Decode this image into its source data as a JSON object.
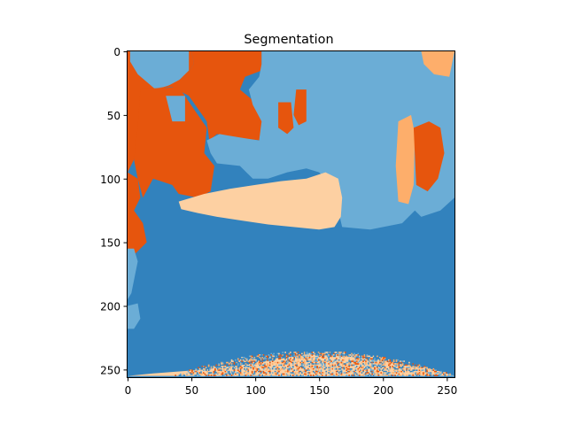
{
  "chart_data": {
    "type": "heatmap",
    "title": "Segmentation",
    "xlabel": "",
    "ylabel": "",
    "xlim": [
      0,
      255
    ],
    "ylim": [
      255,
      0
    ],
    "x_ticks": [
      0,
      50,
      100,
      150,
      200,
      250
    ],
    "y_ticks": [
      0,
      50,
      100,
      150,
      200,
      250
    ],
    "image_size": [
      256,
      256
    ],
    "classes": [
      {
        "name": "",
        "color": "#3282bd"
      },
      {
        "name": "",
        "color": "#6badd6"
      },
      {
        "name": "",
        "color": "#e6550d"
      },
      {
        "name": "",
        "color": "#fdae6b"
      },
      {
        "name": "",
        "color": "#fdd0a2"
      }
    ],
    "regions": [
      {
        "class": 2,
        "polygon": [
          [
            0,
            0
          ],
          [
            50,
            0
          ],
          [
            52,
            10
          ],
          [
            45,
            20
          ],
          [
            30,
            28
          ],
          [
            20,
            40
          ],
          [
            10,
            60
          ],
          [
            5,
            85
          ],
          [
            0,
            95
          ]
        ]
      },
      {
        "class": 2,
        "polygon": [
          [
            0,
            95
          ],
          [
            8,
            100
          ],
          [
            10,
            115
          ],
          [
            5,
            125
          ],
          [
            12,
            135
          ],
          [
            15,
            150
          ],
          [
            5,
            160
          ],
          [
            0,
            160
          ]
        ]
      },
      {
        "class": 1,
        "polygon": [
          [
            2,
            0
          ],
          [
            48,
            0
          ],
          [
            48,
            15
          ],
          [
            38,
            25
          ],
          [
            22,
            30
          ],
          [
            8,
            18
          ],
          [
            2,
            8
          ]
        ]
      },
      {
        "class": 2,
        "polygon": [
          [
            10,
            30
          ],
          [
            35,
            28
          ],
          [
            48,
            35
          ],
          [
            55,
            45
          ],
          [
            62,
            55
          ],
          [
            64,
            70
          ],
          [
            70,
            65
          ],
          [
            85,
            68
          ],
          [
            105,
            70
          ],
          [
            108,
            55
          ],
          [
            100,
            40
          ],
          [
            88,
            30
          ],
          [
            92,
            20
          ],
          [
            105,
            15
          ],
          [
            105,
            0
          ],
          [
            50,
            0
          ],
          [
            52,
            10
          ],
          [
            45,
            20
          ],
          [
            30,
            28
          ]
        ]
      },
      {
        "class": 2,
        "polygon": [
          [
            10,
            30
          ],
          [
            40,
            28
          ],
          [
            62,
            60
          ],
          [
            60,
            80
          ],
          [
            68,
            90
          ],
          [
            65,
            110
          ],
          [
            55,
            115
          ],
          [
            40,
            112
          ],
          [
            35,
            105
          ],
          [
            20,
            100
          ],
          [
            12,
            115
          ],
          [
            8,
            100
          ],
          [
            5,
            85
          ],
          [
            8,
            60
          ]
        ]
      },
      {
        "class": 1,
        "polygon": [
          [
            30,
            35
          ],
          [
            45,
            35
          ],
          [
            45,
            55
          ],
          [
            35,
            55
          ]
        ]
      },
      {
        "class": 1,
        "polygon": [
          [
            148,
            0
          ],
          [
            256,
            0
          ],
          [
            256,
            115
          ],
          [
            245,
            125
          ],
          [
            230,
            130
          ],
          [
            225,
            125
          ],
          [
            215,
            135
          ],
          [
            190,
            140
          ],
          [
            168,
            138
          ],
          [
            165,
            125
          ],
          [
            160,
            105
          ],
          [
            150,
            95
          ],
          [
            140,
            92
          ],
          [
            125,
            95
          ],
          [
            110,
            100
          ],
          [
            98,
            100
          ],
          [
            88,
            90
          ],
          [
            70,
            88
          ],
          [
            65,
            80
          ],
          [
            62,
            70
          ],
          [
            72,
            65
          ],
          [
            90,
            68
          ],
          [
            103,
            70
          ],
          [
            105,
            55
          ],
          [
            98,
            42
          ],
          [
            95,
            30
          ],
          [
            103,
            20
          ],
          [
            105,
            10
          ],
          [
            105,
            0
          ]
        ]
      },
      {
        "class": 3,
        "polygon": [
          [
            230,
            0
          ],
          [
            256,
            0
          ],
          [
            252,
            20
          ],
          [
            240,
            18
          ],
          [
            232,
            10
          ]
        ]
      },
      {
        "class": 3,
        "polygon": [
          [
            212,
            55
          ],
          [
            222,
            50
          ],
          [
            225,
            65
          ],
          [
            224,
            105
          ],
          [
            220,
            120
          ],
          [
            212,
            118
          ],
          [
            210,
            90
          ]
        ]
      },
      {
        "class": 2,
        "polygon": [
          [
            224,
            60
          ],
          [
            236,
            55
          ],
          [
            245,
            60
          ],
          [
            248,
            80
          ],
          [
            243,
            100
          ],
          [
            235,
            110
          ],
          [
            226,
            105
          ]
        ]
      },
      {
        "class": 2,
        "polygon": [
          [
            118,
            40
          ],
          [
            128,
            40
          ],
          [
            130,
            60
          ],
          [
            125,
            65
          ],
          [
            118,
            60
          ]
        ]
      },
      {
        "class": 2,
        "polygon": [
          [
            132,
            30
          ],
          [
            140,
            30
          ],
          [
            140,
            55
          ],
          [
            134,
            58
          ],
          [
            130,
            50
          ]
        ]
      },
      {
        "class": 4,
        "polygon": [
          [
            40,
            118
          ],
          [
            60,
            112
          ],
          [
            80,
            108
          ],
          [
            100,
            105
          ],
          [
            120,
            102
          ],
          [
            140,
            100
          ],
          [
            155,
            95
          ],
          [
            165,
            100
          ],
          [
            168,
            115
          ],
          [
            167,
            130
          ],
          [
            162,
            138
          ],
          [
            150,
            140
          ],
          [
            130,
            138
          ],
          [
            110,
            136
          ],
          [
            90,
            133
          ],
          [
            70,
            130
          ],
          [
            55,
            127
          ],
          [
            42,
            124
          ]
        ]
      },
      {
        "class": 1,
        "polygon": [
          [
            0,
            155
          ],
          [
            5,
            155
          ],
          [
            8,
            165
          ],
          [
            6,
            175
          ],
          [
            3,
            190
          ],
          [
            0,
            195
          ]
        ]
      },
      {
        "class": 1,
        "polygon": [
          [
            0,
            200
          ],
          [
            8,
            198
          ],
          [
            10,
            210
          ],
          [
            5,
            218
          ],
          [
            0,
            218
          ]
        ]
      },
      {
        "class": 4,
        "polygon": [
          [
            0,
            255
          ],
          [
            20,
            253
          ],
          [
            60,
            250
          ],
          [
            100,
            245
          ],
          [
            140,
            238
          ],
          [
            175,
            240
          ],
          [
            210,
            245
          ],
          [
            240,
            250
          ],
          [
            256,
            255
          ]
        ]
      }
    ],
    "background_class": 0,
    "noise_band": {
      "y_from": 236,
      "y_to": 255
    }
  }
}
